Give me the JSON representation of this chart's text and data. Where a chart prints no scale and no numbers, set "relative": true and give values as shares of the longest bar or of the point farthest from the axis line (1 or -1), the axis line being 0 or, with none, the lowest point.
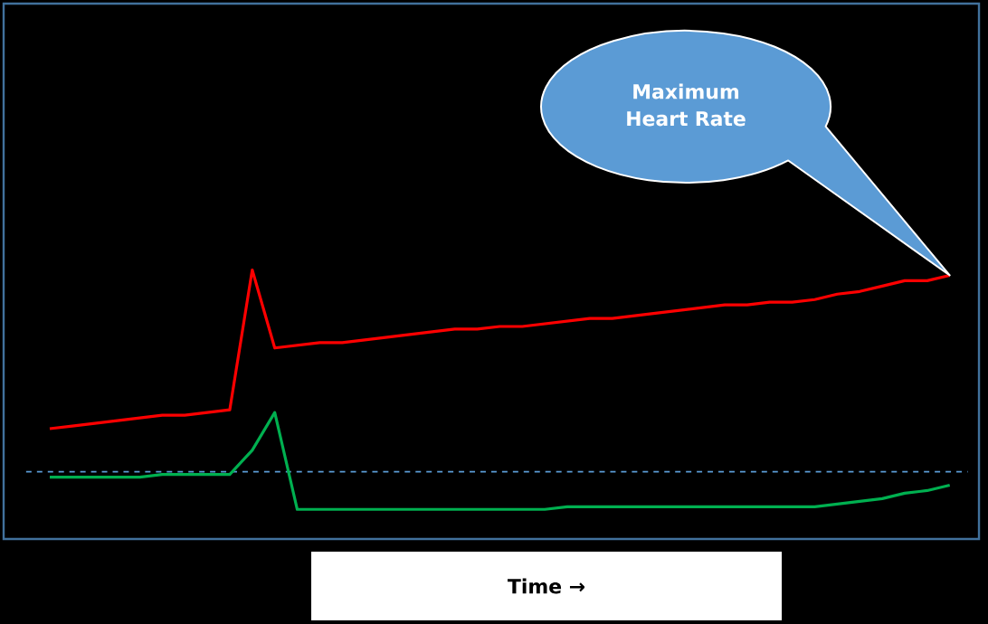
{
  "chart_data": {
    "type": "line",
    "relative": true,
    "xlabel": "Time →",
    "categories": [
      null,
      null,
      null,
      null,
      null,
      null,
      null,
      null,
      null,
      null,
      null,
      null,
      null,
      null,
      null,
      null,
      null,
      null,
      null,
      null,
      null,
      null,
      null,
      null,
      null,
      null,
      null,
      null,
      null,
      null,
      null,
      null,
      null,
      null,
      null,
      null,
      null,
      null,
      null,
      null,
      null
    ],
    "tick_labels": false,
    "marker": "none",
    "line_style": "solid",
    "series": [
      {
        "color": "#ff0000",
        "values": [
          0.41,
          0.42,
          0.43,
          0.44,
          0.45,
          0.46,
          0.46,
          0.47,
          0.48,
          1,
          0.71,
          0.72,
          0.73,
          0.73,
          0.74,
          0.75,
          0.76,
          0.77,
          0.78,
          0.78,
          0.79,
          0.79,
          0.8,
          0.81,
          0.82,
          0.82,
          0.83,
          0.84,
          0.85,
          0.86,
          0.87,
          0.87,
          0.88,
          0.88,
          0.89,
          0.91,
          0.92,
          0.94,
          0.96,
          0.96,
          0.98
        ]
      },
      {
        "color": "#00b050",
        "values": [
          0.23,
          0.23,
          0.23,
          0.23,
          0.23,
          0.24,
          0.24,
          0.24,
          0.24,
          0.33,
          0.47,
          0.11,
          0.11,
          0.11,
          0.11,
          0.11,
          0.11,
          0.11,
          0.11,
          0.11,
          0.11,
          0.11,
          0.11,
          0.12,
          0.12,
          0.12,
          0.12,
          0.12,
          0.12,
          0.12,
          0.12,
          0.12,
          0.12,
          0.12,
          0.12,
          0.13,
          0.14,
          0.15,
          0.17,
          0.18,
          0.2
        ]
      }
    ],
    "ref_lines": [
      {
        "axis": "y",
        "value": 0.25,
        "color": "#5b9bd5",
        "line_style": "dashed"
      }
    ],
    "annotations": [
      "Maximum Heart Rate"
    ]
  }
}
